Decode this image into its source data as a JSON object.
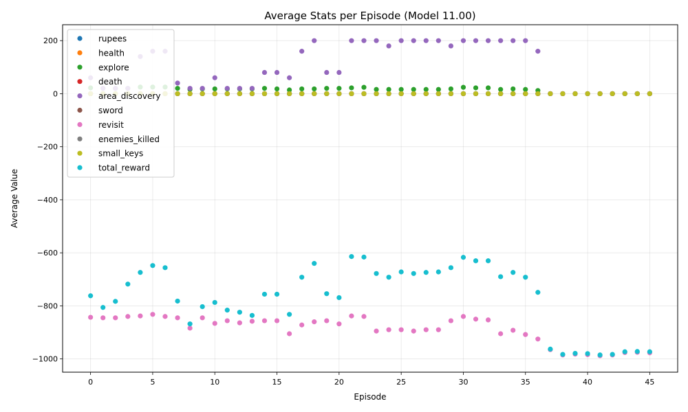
{
  "chart_data": {
    "type": "scatter",
    "title": "Average Stats per Episode (Model 11.00)",
    "xlabel": "Episode",
    "ylabel": "Average Value",
    "xlim": [
      -2.25,
      47.25
    ],
    "ylim": [
      -1050,
      260
    ],
    "xticks": [
      0,
      5,
      10,
      15,
      20,
      25,
      30,
      35,
      40,
      45
    ],
    "yticks": [
      -1000,
      -800,
      -600,
      -400,
      -200,
      0,
      200
    ],
    "grid": true,
    "legend_position": "top-left",
    "x": [
      0,
      1,
      2,
      3,
      4,
      5,
      6,
      7,
      8,
      9,
      10,
      11,
      12,
      13,
      14,
      15,
      16,
      17,
      18,
      19,
      20,
      21,
      22,
      23,
      24,
      25,
      26,
      27,
      28,
      29,
      30,
      31,
      32,
      33,
      34,
      35,
      36,
      37,
      38,
      39,
      40,
      41,
      42,
      43,
      44,
      45
    ],
    "series": [
      {
        "name": "rupees",
        "color": "#1f77b4",
        "values": [
          0,
          0,
          0,
          0,
          0,
          0,
          0,
          0,
          0,
          0,
          0,
          0,
          0,
          0,
          0,
          0,
          0,
          0,
          0,
          0,
          0,
          0,
          0,
          0,
          0,
          0,
          0,
          0,
          0,
          0,
          0,
          0,
          0,
          0,
          0,
          0,
          0,
          0,
          0,
          0,
          0,
          0,
          0,
          0,
          0,
          0
        ]
      },
      {
        "name": "health",
        "color": "#ff7f0e",
        "values": [
          0,
          0,
          0,
          0,
          0,
          0,
          0,
          0,
          0,
          0,
          0,
          0,
          0,
          0,
          0,
          0,
          0,
          0,
          0,
          0,
          0,
          0,
          0,
          0,
          0,
          0,
          0,
          0,
          0,
          0,
          0,
          0,
          0,
          0,
          0,
          0,
          0,
          0,
          0,
          0,
          0,
          0,
          0,
          0,
          0,
          0
        ]
      },
      {
        "name": "explore",
        "color": "#2ca02c",
        "values": [
          22,
          20,
          20,
          20,
          25,
          25,
          25,
          20,
          16,
          18,
          18,
          18,
          18,
          18,
          20,
          18,
          14,
          18,
          18,
          20,
          20,
          22,
          24,
          16,
          16,
          16,
          16,
          16,
          16,
          18,
          24,
          22,
          22,
          16,
          18,
          16,
          12,
          0,
          0,
          0,
          0,
          0,
          0,
          0,
          0,
          0
        ]
      },
      {
        "name": "death",
        "color": "#d62728",
        "values": [
          0,
          0,
          0,
          0,
          0,
          0,
          0,
          0,
          0,
          0,
          0,
          0,
          0,
          0,
          0,
          0,
          0,
          0,
          0,
          0,
          0,
          0,
          0,
          0,
          0,
          0,
          0,
          0,
          0,
          0,
          0,
          0,
          0,
          0,
          0,
          0,
          0,
          0,
          0,
          0,
          0,
          0,
          0,
          0,
          0,
          0
        ]
      },
      {
        "name": "area_discovery",
        "color": "#9467bd",
        "values": [
          60,
          20,
          20,
          20,
          140,
          160,
          160,
          40,
          20,
          20,
          60,
          20,
          20,
          20,
          80,
          80,
          60,
          160,
          200,
          80,
          80,
          200,
          200,
          200,
          180,
          200,
          200,
          200,
          200,
          180,
          200,
          200,
          200,
          200,
          200,
          200,
          160,
          0,
          0,
          0,
          0,
          0,
          0,
          0,
          0,
          0
        ]
      },
      {
        "name": "sword",
        "color": "#8c564b",
        "values": [
          0,
          0,
          0,
          0,
          0,
          0,
          0,
          0,
          0,
          0,
          0,
          0,
          0,
          0,
          0,
          0,
          0,
          0,
          0,
          0,
          0,
          0,
          0,
          0,
          0,
          0,
          0,
          0,
          0,
          0,
          0,
          0,
          0,
          0,
          0,
          0,
          0,
          0,
          0,
          0,
          0,
          0,
          0,
          0,
          0,
          0
        ]
      },
      {
        "name": "revisit",
        "color": "#e377c2",
        "values": [
          -843,
          -845,
          -845,
          -840,
          -838,
          -832,
          -840,
          -845,
          -884,
          -845,
          -866,
          -856,
          -864,
          -858,
          -856,
          -856,
          -905,
          -872,
          -860,
          -856,
          -868,
          -838,
          -840,
          -895,
          -890,
          -890,
          -895,
          -890,
          -890,
          -856,
          -840,
          -850,
          -853,
          -905,
          -892,
          -908,
          -925,
          -965,
          -985,
          -982,
          -984,
          -988,
          -985,
          -976,
          -975,
          -977
        ]
      },
      {
        "name": "enemies_killed",
        "color": "#7f7f7f",
        "values": [
          0,
          0,
          0,
          0,
          0,
          0,
          0,
          0,
          0,
          0,
          0,
          0,
          0,
          0,
          0,
          0,
          0,
          0,
          0,
          0,
          0,
          0,
          0,
          0,
          0,
          0,
          0,
          0,
          0,
          0,
          0,
          0,
          0,
          0,
          0,
          0,
          0,
          0,
          0,
          0,
          0,
          0,
          0,
          0,
          0,
          0
        ]
      },
      {
        "name": "small_keys",
        "color": "#bcbd22",
        "values": [
          0,
          0,
          0,
          0,
          0,
          0,
          0,
          0,
          0,
          0,
          0,
          0,
          0,
          0,
          0,
          0,
          0,
          0,
          0,
          0,
          0,
          0,
          0,
          0,
          0,
          0,
          0,
          0,
          0,
          0,
          0,
          0,
          0,
          0,
          0,
          0,
          0,
          0,
          0,
          0,
          0,
          0,
          0,
          0,
          0,
          0
        ]
      },
      {
        "name": "total_reward",
        "color": "#17becf",
        "values": [
          -762,
          -806,
          -783,
          -718,
          -674,
          -648,
          -656,
          -782,
          -868,
          -803,
          -787,
          -816,
          -824,
          -836,
          -756,
          -756,
          -832,
          -692,
          -640,
          -754,
          -769,
          -614,
          -616,
          -678,
          -692,
          -672,
          -678,
          -674,
          -672,
          -656,
          -617,
          -630,
          -630,
          -690,
          -674,
          -692,
          -749,
          -963,
          -983,
          -979,
          -980,
          -985,
          -983,
          -973,
          -972,
          -973
        ]
      }
    ]
  }
}
